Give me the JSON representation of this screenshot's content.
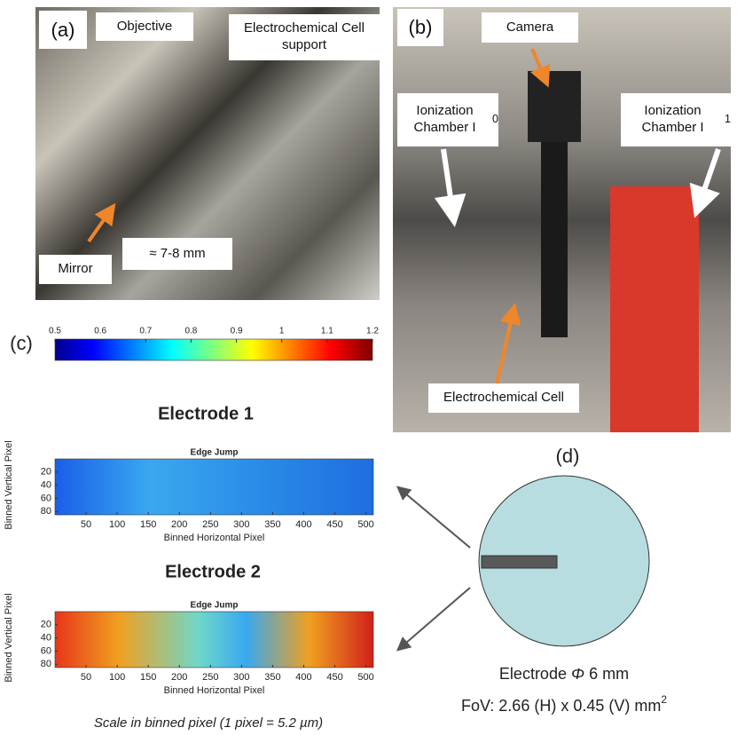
{
  "panel_a": {
    "label": "(a)",
    "callouts": [
      "Objective",
      "Electrochemical Cell support",
      "Mirror",
      "≈ 7-8 mm"
    ]
  },
  "panel_b": {
    "label": "(b)",
    "camera": "Camera",
    "chambers": [
      {
        "text": "Ionization Chamber I",
        "subscript": "0"
      },
      {
        "text": "Ionization Chamber I",
        "subscript": "1"
      }
    ],
    "cell": "Electrochemical Cell"
  },
  "panel_c": {
    "label": "(c)",
    "colorbar": {
      "lim": [
        0.5,
        1.2
      ],
      "ticks": [
        0.5,
        0.6,
        0.7,
        0.8,
        0.9,
        1,
        1.1,
        1.2
      ]
    },
    "plots": [
      {
        "heading": "Electrode 1",
        "title": "Edge Jump",
        "xlabel": "Binned Horizontal Pixel",
        "ylabel": "Binned Vertical Pixel",
        "xlim": [
          0,
          512
        ],
        "ylim": [
          0,
          85
        ],
        "xticks": [
          50,
          100,
          150,
          200,
          250,
          300,
          350,
          400,
          450,
          500
        ],
        "yticks": [
          20,
          40,
          60,
          80
        ]
      },
      {
        "heading": "Electrode 2",
        "title": "Edge Jump",
        "xlabel": "Binned Horizontal Pixel",
        "ylabel": "Binned Vertical Pixel",
        "xlim": [
          0,
          512
        ],
        "ylim": [
          0,
          85
        ],
        "xticks": [
          50,
          100,
          150,
          200,
          250,
          300,
          350,
          400,
          450,
          500
        ],
        "yticks": [
          20,
          40,
          60,
          80
        ]
      }
    ],
    "caption": "Scale in binned pixel (1 pixel = 5.2 µm)"
  },
  "panel_d": {
    "label": "(d)",
    "electrode": [
      "Electrode",
      "Φ",
      "6 mm"
    ],
    "fov": {
      "text": "FoV: 2.66 (H) x 0.45 (V) mm",
      "superscript": "2"
    }
  }
}
